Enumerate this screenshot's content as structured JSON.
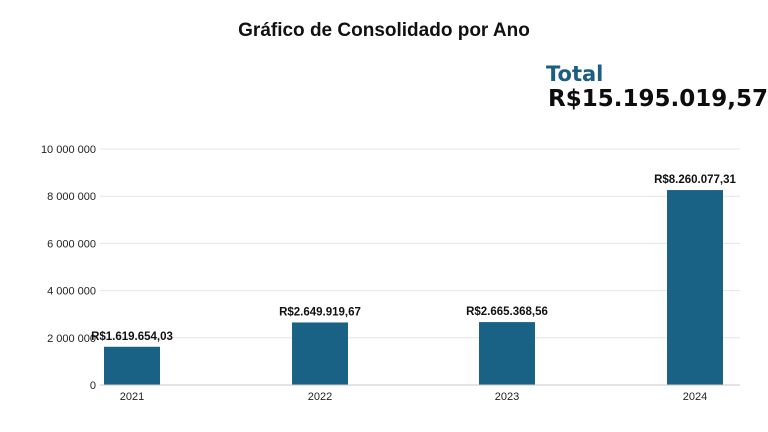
{
  "header": {
    "title": "Gráfico de Consolidado por Ano"
  },
  "total": {
    "label": "Total",
    "value": "R$15.195.019,57"
  },
  "colors": {
    "bar": "#1a6186",
    "accent": "#1a5e80",
    "grid": "#e6e6e6",
    "axis": "#c8c8c8"
  },
  "chart_data": {
    "type": "bar",
    "title": "Gráfico de Consolidado por Ano",
    "xlabel": "",
    "ylabel": "",
    "categories": [
      "2021",
      "2022",
      "2023",
      "2024"
    ],
    "values": [
      1619654.03,
      2649919.67,
      2665368.56,
      8260077.31
    ],
    "data_labels": [
      "R$1.619.654,03",
      "R$2.649.919,67",
      "R$2.665.368,56",
      "R$8.260.077,31"
    ],
    "ylim": [
      0,
      10000000
    ],
    "yticks": [
      0,
      2000000,
      4000000,
      6000000,
      8000000,
      10000000
    ],
    "ytick_labels": [
      "0",
      "2 000 000",
      "4 000 000",
      "6 000 000",
      "8 000 000",
      "10 000 000"
    ],
    "grid": true,
    "legend": "none"
  }
}
